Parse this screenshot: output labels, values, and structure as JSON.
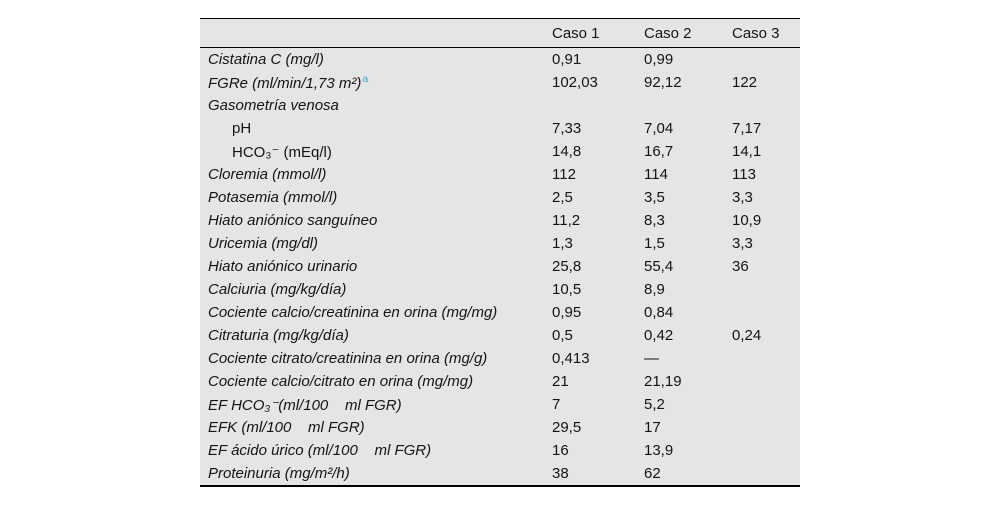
{
  "table": {
    "headers": [
      "",
      "Caso 1",
      "Caso 2",
      "Caso 3"
    ],
    "footnote_marker_color": "#2fa8de",
    "rows": [
      {
        "label": "Cistatina C (mg/l)",
        "italic": true,
        "indent": 0,
        "values": [
          "0,91",
          "0,99",
          ""
        ]
      },
      {
        "label": "FGRe (ml/min/1,73 m²)",
        "marker": "a",
        "italic": true,
        "indent": 0,
        "values": [
          "102,03",
          "92,12",
          "122"
        ]
      },
      {
        "label": "Gasometría venosa",
        "italic": true,
        "indent": 0,
        "values": [
          "",
          "",
          ""
        ]
      },
      {
        "label": "pH",
        "italic": false,
        "indent": 1,
        "values": [
          "7,33",
          "7,04",
          "7,17"
        ]
      },
      {
        "label": "HCO₃⁻ (mEq/l)",
        "italic": false,
        "indent": 1,
        "values": [
          "14,8",
          "16,7",
          "14,1"
        ]
      },
      {
        "label": "Cloremia (mmol/l)",
        "italic": true,
        "indent": 0,
        "values": [
          "112",
          "114",
          "113"
        ]
      },
      {
        "label": "Potasemia (mmol/l)",
        "italic": true,
        "indent": 0,
        "values": [
          "2,5",
          "3,5",
          "3,3"
        ]
      },
      {
        "label": "Hiato aniónico sanguíneo",
        "italic": true,
        "indent": 0,
        "values": [
          "11,2",
          "8,3",
          "10,9"
        ]
      },
      {
        "label": "Uricemia (mg/dl)",
        "italic": true,
        "indent": 0,
        "values": [
          "1,3",
          "1,5",
          "3,3"
        ]
      },
      {
        "label": "Hiato aniónico urinario",
        "italic": true,
        "indent": 0,
        "values": [
          "25,8",
          "55,4",
          "36"
        ]
      },
      {
        "label": "Calciuria (mg/kg/día)",
        "italic": true,
        "indent": 0,
        "values": [
          "10,5",
          "8,9",
          ""
        ]
      },
      {
        "label": "Cociente calcio/creatinina en orina (mg/mg)",
        "italic": true,
        "indent": 0,
        "values": [
          "0,95",
          "0,84",
          ""
        ]
      },
      {
        "label": "Citraturia (mg/kg/día)",
        "italic": true,
        "indent": 0,
        "values": [
          "0,5",
          "0,42",
          "0,24"
        ]
      },
      {
        "label": "Cociente citrato/creatinina en orina (mg/g)",
        "italic": true,
        "indent": 0,
        "values": [
          "0,413",
          "—",
          ""
        ]
      },
      {
        "label": "Cociente calcio/citrato en orina (mg/mg)",
        "italic": true,
        "indent": 0,
        "values": [
          "21",
          "21,19",
          ""
        ]
      },
      {
        "label": "EF HCO₃⁻(ml/100    ml FGR)",
        "italic": true,
        "indent": 0,
        "values": [
          "7",
          "5,2",
          ""
        ]
      },
      {
        "label": "EFK (ml/100    ml FGR)",
        "italic": true,
        "indent": 0,
        "values": [
          "29,5",
          "17",
          ""
        ]
      },
      {
        "label": "EF ácido úrico (ml/100    ml FGR)",
        "italic": true,
        "indent": 0,
        "values": [
          "16",
          "13,9",
          ""
        ]
      },
      {
        "label": "Proteinuria (mg/m²/h)",
        "italic": true,
        "indent": 0,
        "values": [
          "38",
          "62",
          ""
        ]
      }
    ]
  }
}
